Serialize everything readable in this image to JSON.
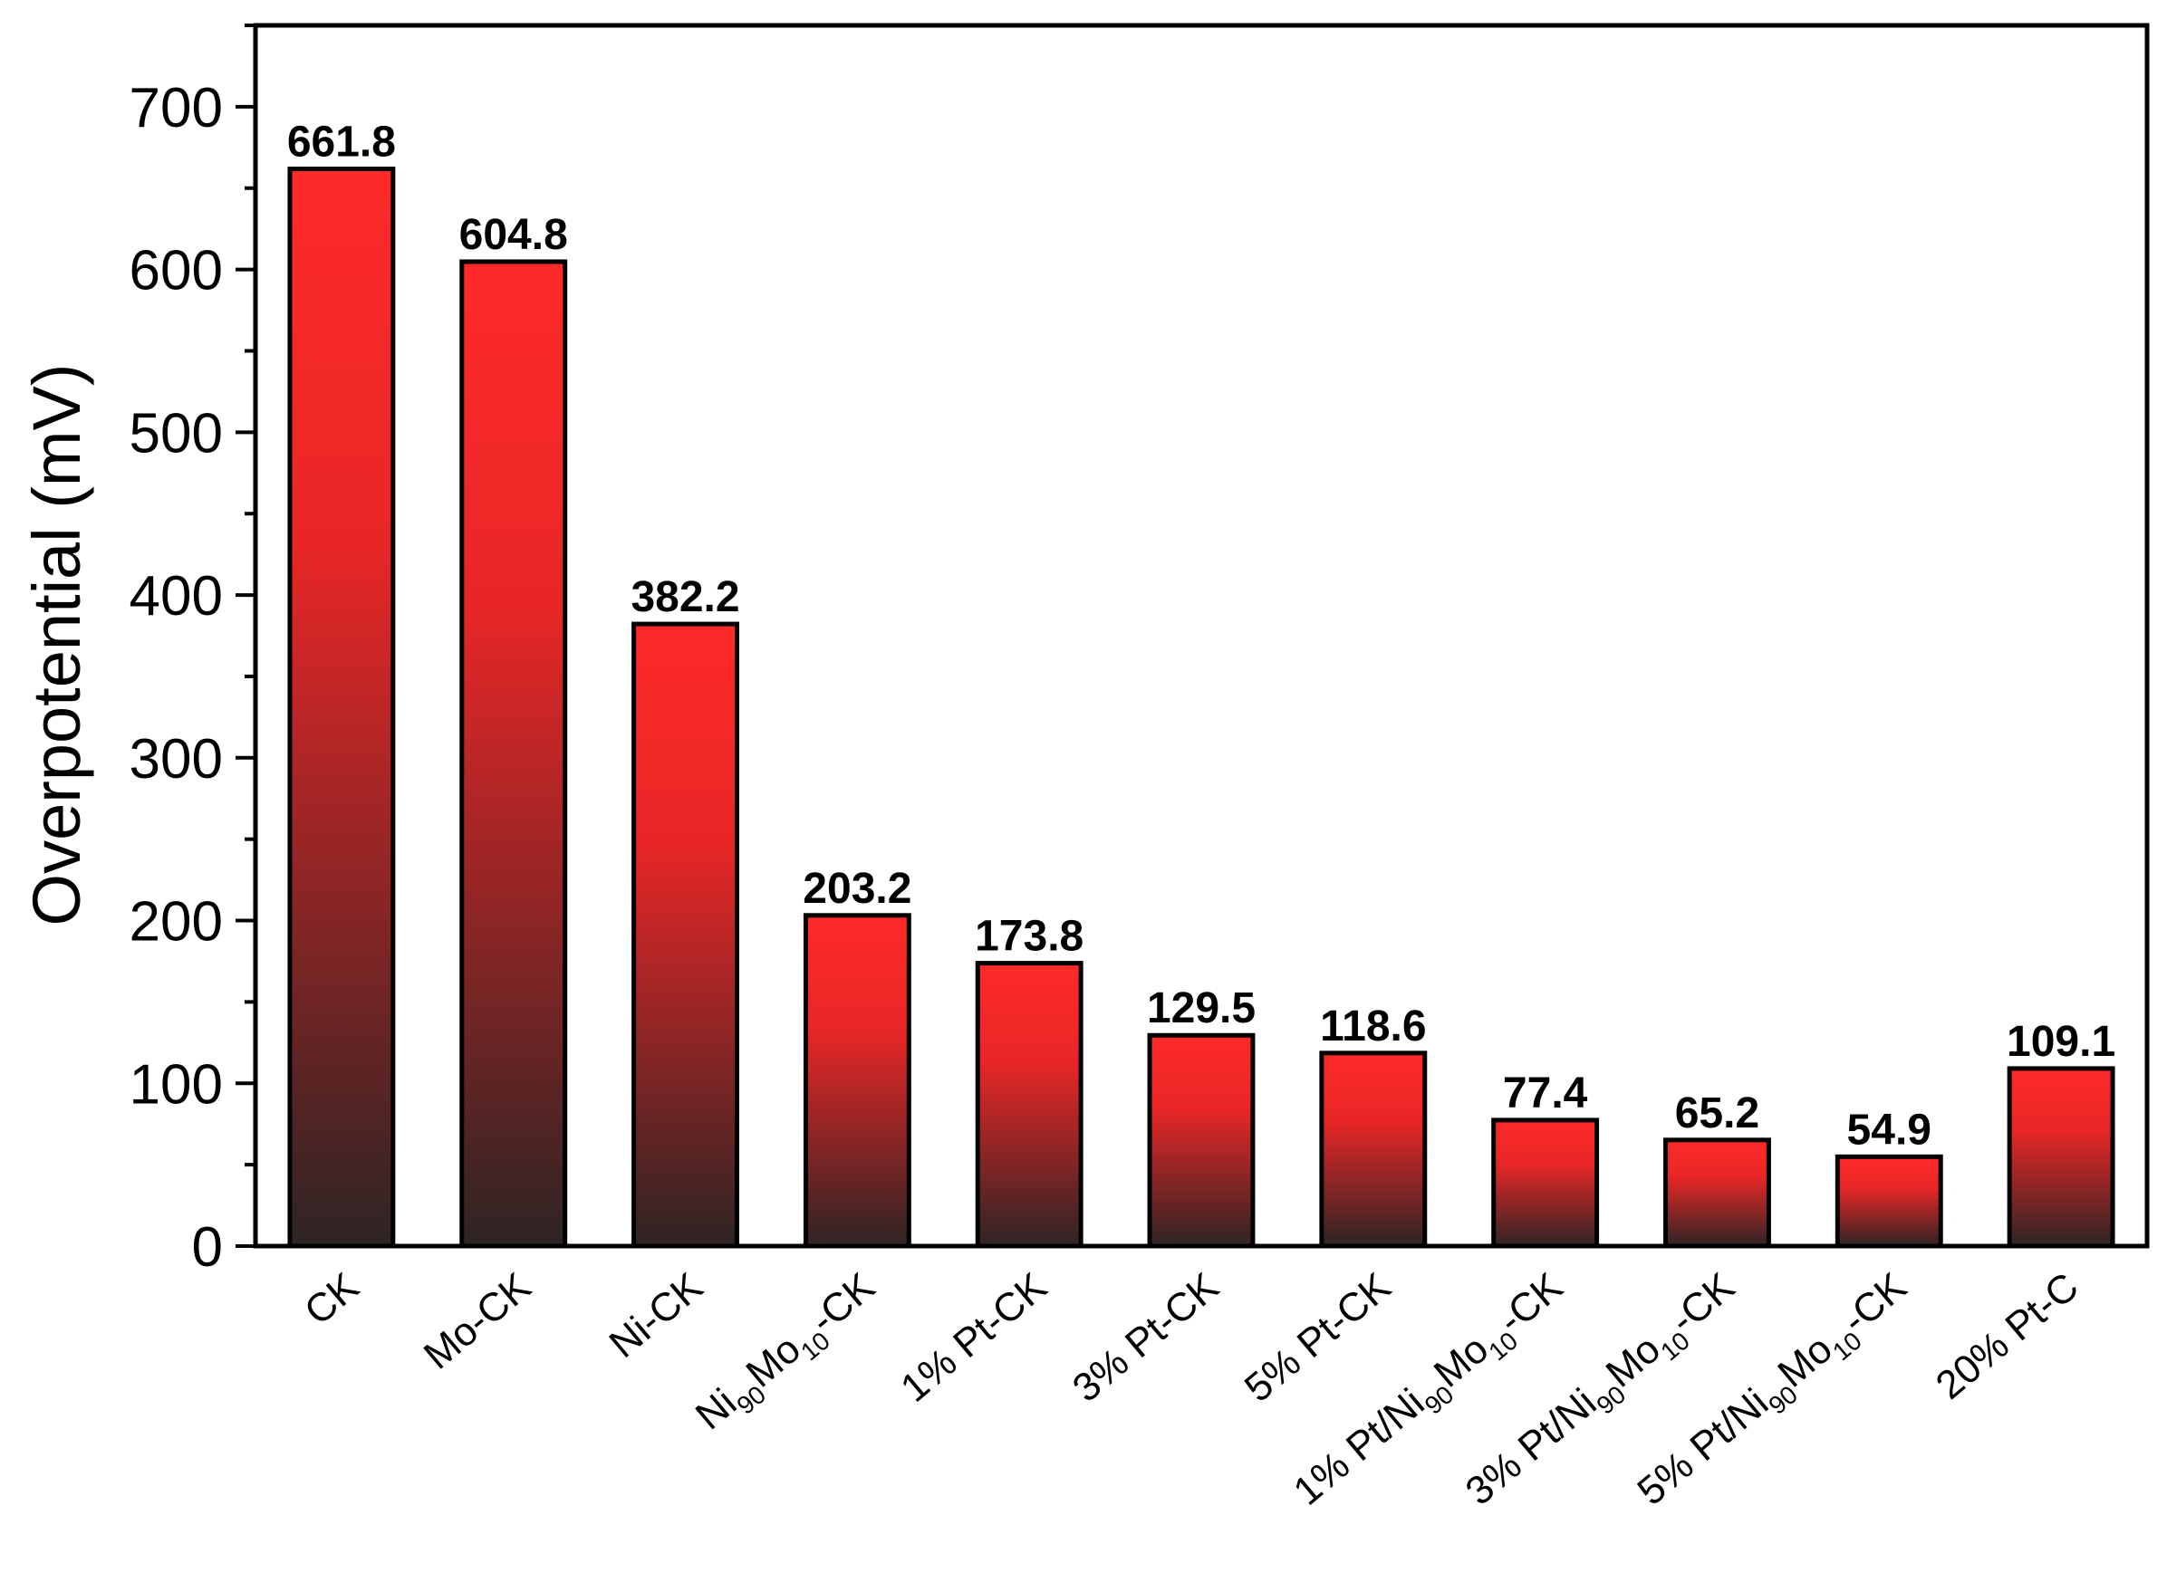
{
  "chart_data": {
    "type": "bar",
    "categories": [
      {
        "parts": [
          [
            "CK",
            ""
          ]
        ]
      },
      {
        "parts": [
          [
            "Mo-CK",
            ""
          ]
        ]
      },
      {
        "parts": [
          [
            "Ni-CK",
            ""
          ]
        ]
      },
      {
        "parts": [
          [
            "Ni",
            ""
          ],
          [
            "90",
            "sub"
          ],
          [
            "Mo",
            ""
          ],
          [
            "10",
            "sub"
          ],
          [
            "-CK",
            ""
          ]
        ]
      },
      {
        "parts": [
          [
            "1% Pt-CK",
            ""
          ]
        ]
      },
      {
        "parts": [
          [
            "3% Pt-CK",
            ""
          ]
        ]
      },
      {
        "parts": [
          [
            "5% Pt-CK",
            ""
          ]
        ]
      },
      {
        "parts": [
          [
            "1% Pt/Ni",
            ""
          ],
          [
            "90",
            "sub"
          ],
          [
            "Mo",
            ""
          ],
          [
            "10",
            "sub"
          ],
          [
            "-CK",
            ""
          ]
        ]
      },
      {
        "parts": [
          [
            "3% Pt/Ni",
            ""
          ],
          [
            "90",
            "sub"
          ],
          [
            "Mo",
            ""
          ],
          [
            "10",
            "sub"
          ],
          [
            "-CK",
            ""
          ]
        ]
      },
      {
        "parts": [
          [
            "5% Pt/Ni",
            ""
          ],
          [
            "90",
            "sub"
          ],
          [
            "Mo",
            ""
          ],
          [
            "10",
            "sub"
          ],
          [
            "-CK",
            ""
          ]
        ]
      },
      {
        "parts": [
          [
            "20% Pt-C",
            ""
          ]
        ]
      }
    ],
    "values": [
      661.8,
      604.8,
      382.2,
      203.2,
      173.8,
      129.5,
      118.6,
      77.4,
      65.2,
      54.9,
      109.1
    ],
    "value_labels": [
      "661.8",
      "604.8",
      "382.2",
      "203.2",
      "173.8",
      "129.5",
      "118.6",
      "77.4",
      "65.2",
      "54.9",
      "109.1"
    ],
    "ylabel": "Overpotential (mV)",
    "ylim": [
      0,
      750
    ],
    "yticks": [
      0,
      100,
      200,
      300,
      400,
      500,
      600,
      700
    ],
    "ytick_labels": [
      "0",
      "100",
      "200",
      "300",
      "400",
      "500",
      "600",
      "700"
    ],
    "grid": false,
    "bar_color_top": "#ff2a2a",
    "bar_color_bottom": "#2e2424"
  }
}
